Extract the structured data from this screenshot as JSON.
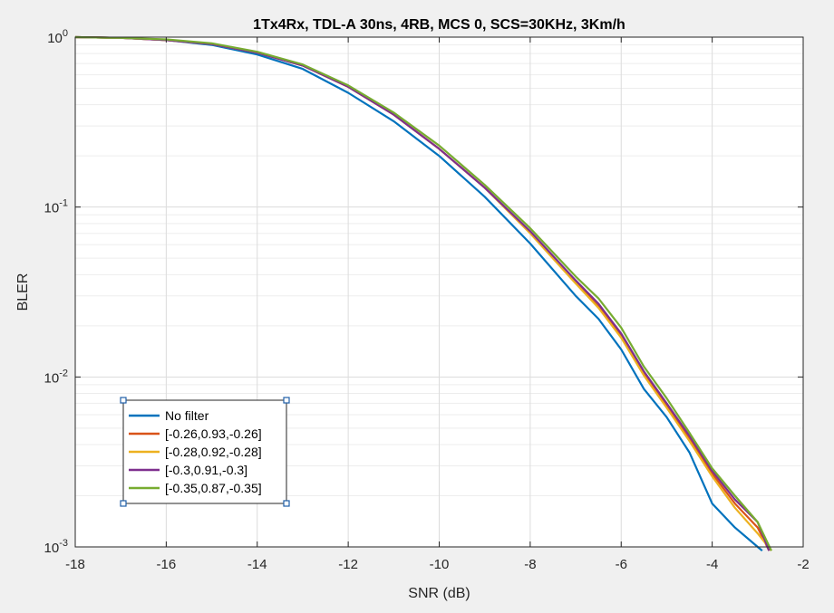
{
  "chart_data": {
    "type": "line",
    "title": "1Tx4Rx, TDL-A 30ns, 4RB, MCS 0, SCS=30KHz, 3Km/h",
    "xlabel": "SNR (dB)",
    "ylabel": "BLER",
    "xlim": [
      -18,
      -2
    ],
    "ylim": [
      0.001,
      1
    ],
    "yscale": "log",
    "grid": true,
    "legend_position": "lower-left",
    "x_ticks": [
      "-18",
      "-16",
      "-14",
      "-12",
      "-10",
      "-8",
      "-6",
      "-4",
      "-2"
    ],
    "y_ticks": [
      {
        "base": "10",
        "exp": "0"
      },
      {
        "base": "10",
        "exp": "-1"
      },
      {
        "base": "10",
        "exp": "-2"
      },
      {
        "base": "10",
        "exp": "-3"
      }
    ],
    "series": [
      {
        "name": "No filter",
        "color": "#0072bd",
        "x": [
          -18,
          -17,
          -16,
          -15,
          -14,
          -13,
          -12,
          -11,
          -10,
          -9,
          -8,
          -7,
          -6.5,
          -6,
          -5.5,
          -5,
          -4.5,
          -4,
          -3.5,
          -3,
          -2.9
        ],
        "y": [
          1,
          0.99,
          0.96,
          0.9,
          0.79,
          0.65,
          0.47,
          0.32,
          0.2,
          0.115,
          0.061,
          0.03,
          0.022,
          0.0145,
          0.0085,
          0.0058,
          0.0036,
          0.0018,
          0.0013,
          0.001,
          0.00095
        ]
      },
      {
        "name": "[-0.26,0.93,-0.26]",
        "color": "#d95319",
        "x": [
          -18,
          -17,
          -16,
          -15,
          -14,
          -13,
          -12,
          -11,
          -10,
          -9,
          -8,
          -7,
          -6.5,
          -6,
          -5.5,
          -5,
          -4.5,
          -4,
          -3.5,
          -3,
          -2.75
        ],
        "y": [
          1,
          0.99,
          0.96,
          0.91,
          0.81,
          0.68,
          0.51,
          0.35,
          0.22,
          0.13,
          0.071,
          0.036,
          0.026,
          0.0175,
          0.0105,
          0.0068,
          0.0043,
          0.0027,
          0.0018,
          0.0013,
          0.00095
        ]
      },
      {
        "name": "[-0.28,0.92,-0.28]",
        "color": "#edb120",
        "x": [
          -18,
          -17,
          -16,
          -15,
          -14,
          -13,
          -12,
          -11,
          -10,
          -9,
          -8,
          -7,
          -6.5,
          -6,
          -5.5,
          -5,
          -4.5,
          -4,
          -3.5,
          -3,
          -2.7
        ],
        "y": [
          1,
          0.99,
          0.96,
          0.91,
          0.81,
          0.68,
          0.51,
          0.35,
          0.22,
          0.13,
          0.07,
          0.0355,
          0.0255,
          0.017,
          0.0102,
          0.0066,
          0.0042,
          0.0026,
          0.0017,
          0.0012,
          0.00095
        ]
      },
      {
        "name": "[-0.3,0.91,-0.3]",
        "color": "#7e2f8e",
        "x": [
          -18,
          -17,
          -16,
          -15,
          -14,
          -13,
          -12,
          -11,
          -10,
          -9,
          -8,
          -7,
          -6.5,
          -6,
          -5.5,
          -5,
          -4.5,
          -4,
          -3.5,
          -3,
          -2.75
        ],
        "y": [
          1,
          0.99,
          0.96,
          0.91,
          0.81,
          0.68,
          0.51,
          0.35,
          0.22,
          0.13,
          0.072,
          0.037,
          0.027,
          0.018,
          0.0108,
          0.007,
          0.0045,
          0.0028,
          0.0019,
          0.0014,
          0.00095
        ]
      },
      {
        "name": "[-0.35,0.87,-0.35]",
        "color": "#77ac30",
        "x": [
          -18,
          -17,
          -16,
          -15,
          -14,
          -13,
          -12,
          -11,
          -10,
          -9,
          -8,
          -7,
          -6.5,
          -6,
          -5.5,
          -5,
          -4.5,
          -4,
          -3.5,
          -3,
          -2.7
        ],
        "y": [
          1,
          0.99,
          0.97,
          0.92,
          0.82,
          0.69,
          0.52,
          0.36,
          0.23,
          0.135,
          0.075,
          0.039,
          0.029,
          0.0195,
          0.0115,
          0.0075,
          0.0047,
          0.0029,
          0.002,
          0.0014,
          0.00095
        ]
      }
    ]
  }
}
